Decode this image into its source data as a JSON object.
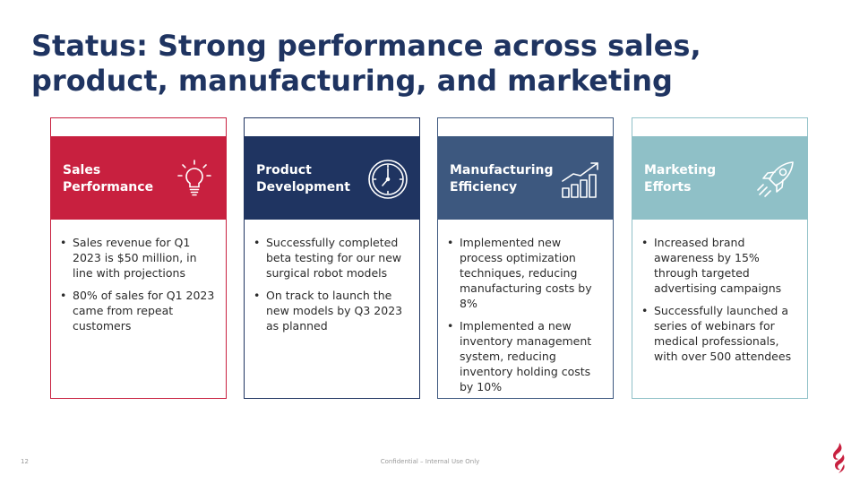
{
  "slide": {
    "title": "Status: Strong performance across sales, product, manufacturing, and marketing",
    "page_number": "12",
    "footer": "Confidential – Internal Use Only"
  },
  "cards": [
    {
      "label": "Sales Performance",
      "icon": "lightbulb-icon",
      "color": "#c8203f",
      "bullets": [
        "Sales revenue for Q1 2023 is $50 million, in line with projections",
        "80% of sales for Q1 2023 came from repeat customers"
      ]
    },
    {
      "label": "Product Development",
      "icon": "clock-icon",
      "color": "#1f3461",
      "bullets": [
        "Successfully completed beta testing for our new surgical robot models",
        "On track to launch the new models by Q3 2023 as planned"
      ]
    },
    {
      "label": "Manufacturing Efficiency",
      "icon": "bar-growth-icon",
      "color": "#3d587f",
      "bullets": [
        "Implemented new process optimization techniques, reducing manufacturing costs by 8%",
        "Implemented a new inventory management system, reducing inventory holding costs by 10%"
      ]
    },
    {
      "label": "Marketing Efforts",
      "icon": "rocket-icon",
      "color": "#8fc0c7",
      "bullets": [
        "Increased brand awareness by 15% through targeted advertising campaigns",
        "Successfully launched a series of webinars for medical professionals, with over 500 attendees"
      ]
    }
  ]
}
